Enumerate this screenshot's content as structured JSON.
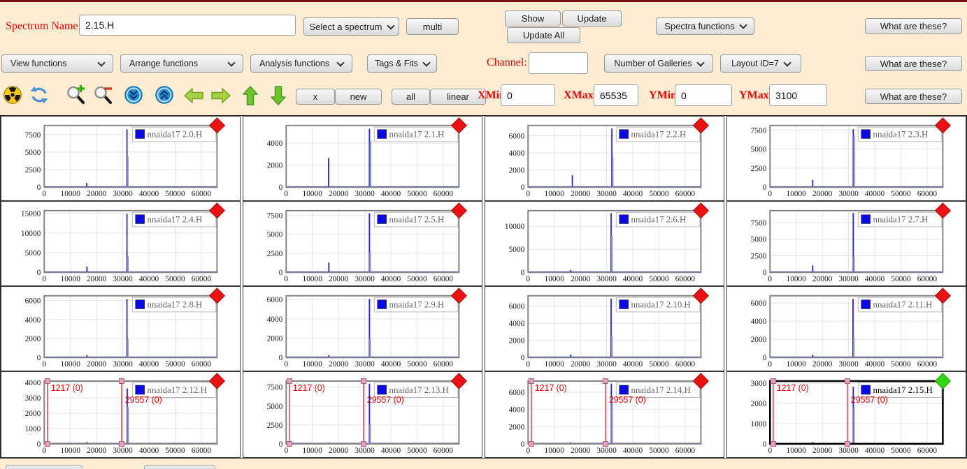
{
  "toolbar_row1": {
    "spectrum_name_label": "Spectrum Name:",
    "spectrum_name_value": "2.15.H",
    "select_spectrum_label": "Select a spectrum",
    "multi_label": "multi",
    "show_label": "Show",
    "update_label": "Update",
    "update_all_label": "Update All",
    "spectra_functions_label": "Spectra functions",
    "what_are_these_label": "What are these?"
  },
  "toolbar_row2": {
    "view_functions_label": "View functions",
    "arrange_functions_label": "Arrange functions",
    "analysis_functions_label": "Analysis functions",
    "tags_fits_label": "Tags & Fits",
    "channel_label": "Channel:",
    "channel_value": "",
    "number_of_galleries_label": "Number of Galleries",
    "layout_id_label": "Layout ID=7",
    "what_are_these_label": "What are these?"
  },
  "toolbar_row3": {
    "x_label": "x",
    "new_label": "new",
    "all_label": "all",
    "linear_label": "linear",
    "xmin_label": "XMin",
    "xmin_value": "0",
    "xmax_label": "XMax",
    "xmax_value": "65535",
    "ymin_label": "YMin",
    "ymin_value": "0",
    "ymax_label": "YMax",
    "ymax_value": "3100",
    "what_are_these_label": "What are these?",
    "icons": [
      "radiation-icon",
      "refresh-icon",
      "zoom-in-icon",
      "zoom-out-icon",
      "scroll-down-icon",
      "scroll-up-icon",
      "left-arrow-icon",
      "right-arrow-icon",
      "up-arrow-icon",
      "down-arrow-icon"
    ]
  },
  "chart_data": {
    "type": "line",
    "note": "4x4 gallery of 1-D spectra histograms, blue spikes near channel 16200 and 31700",
    "x_axis": {
      "ticks": [
        0,
        10000,
        20000,
        30000,
        40000,
        50000,
        60000
      ],
      "range": [
        0,
        66000
      ]
    },
    "colors": {
      "spike": "#2222d8",
      "spike_soft": "#8585e0",
      "grid": "#e4e4ea",
      "plot_border": "#858585",
      "selected_border": "#000000",
      "diamond_red": "#ee1111",
      "diamond_green": "#2fd611",
      "marker": "#d83030",
      "marker_handle_fill": "#d9a6c6",
      "marker_handle_stroke": "#c05a78",
      "legend_swatch": "#0a0ae6",
      "legend_text": "#666666",
      "legend_text_selected": "#000000"
    },
    "charts": [
      {
        "label": "nnaida17 2.0.H",
        "yticks": [
          0,
          2500,
          5000,
          7500
        ],
        "ymax": 8800,
        "peaks": [
          [
            16200,
            620,
            0
          ],
          [
            31600,
            8250,
            0
          ],
          [
            31900,
            4400,
            1
          ]
        ],
        "diamond": "red",
        "selected": false,
        "markers": []
      },
      {
        "label": "nnaida17 2.1.H",
        "yticks": [
          0,
          2000,
          4000
        ],
        "ymax": 5600,
        "peaks": [
          [
            16200,
            2650,
            0
          ],
          [
            31800,
            5300,
            0
          ],
          [
            32150,
            4200,
            1
          ]
        ],
        "diamond": "red",
        "selected": false,
        "markers": []
      },
      {
        "label": "nnaida17 2.2.H",
        "yticks": [
          0,
          2000,
          4000,
          6000
        ],
        "ymax": 7200,
        "peaks": [
          [
            16900,
            1400,
            0
          ],
          [
            32000,
            6850,
            0
          ],
          [
            32300,
            3500,
            1
          ]
        ],
        "diamond": "red",
        "selected": false,
        "markers": []
      },
      {
        "label": "nnaida17 2.3.H",
        "yticks": [
          0,
          2500,
          5000,
          7500
        ],
        "ymax": 8100,
        "peaks": [
          [
            16300,
            950,
            0
          ],
          [
            31800,
            7600,
            0
          ],
          [
            32100,
            6800,
            1
          ]
        ],
        "diamond": "red",
        "selected": false,
        "markers": []
      },
      {
        "label": "nnaida17 2.4.H",
        "yticks": [
          0,
          5000,
          10000,
          15000
        ],
        "ymax": 15700,
        "peaks": [
          [
            16300,
            1450,
            0
          ],
          [
            31600,
            14900,
            0
          ],
          [
            31950,
            4100,
            1
          ]
        ],
        "diamond": "red",
        "selected": false,
        "markers": []
      },
      {
        "label": "nnaida17 2.5.H",
        "yticks": [
          0,
          2500,
          5000,
          7500
        ],
        "ymax": 8100,
        "peaks": [
          [
            16300,
            1300,
            0
          ],
          [
            31800,
            7750,
            0
          ],
          [
            32050,
            2600,
            1
          ]
        ],
        "diamond": "red",
        "selected": false,
        "markers": []
      },
      {
        "label": "nnaida17 2.6.H",
        "yticks": [
          0,
          5000,
          10000
        ],
        "ymax": 13400,
        "peaks": [
          [
            16300,
            520,
            0
          ],
          [
            31700,
            12850,
            0
          ],
          [
            32000,
            8000,
            1
          ]
        ],
        "diamond": "red",
        "selected": false,
        "markers": []
      },
      {
        "label": "nnaida17 2.7.H",
        "yticks": [
          0,
          2500,
          5000,
          7500
        ],
        "ymax": 9300,
        "peaks": [
          [
            16300,
            1050,
            0
          ],
          [
            31800,
            8950,
            0
          ],
          [
            32050,
            2400,
            1
          ]
        ],
        "diamond": "red",
        "selected": false,
        "markers": []
      },
      {
        "label": "nnaida17 2.8.H",
        "yticks": [
          0,
          2000,
          4000,
          6000
        ],
        "ymax": 6500,
        "peaks": [
          [
            16300,
            260,
            0
          ],
          [
            31600,
            6150,
            0
          ],
          [
            31900,
            2000,
            1
          ]
        ],
        "diamond": "red",
        "selected": false,
        "markers": []
      },
      {
        "label": "nnaida17 2.9.H",
        "yticks": [
          0,
          2000,
          4000,
          6000
        ],
        "ymax": 6400,
        "peaks": [
          [
            16300,
            260,
            0
          ],
          [
            31800,
            6050,
            0
          ],
          [
            32050,
            2000,
            1
          ]
        ],
        "diamond": "red",
        "selected": false,
        "markers": []
      },
      {
        "label": "nnaida17 2.10.H",
        "yticks": [
          0,
          2000,
          4000,
          6000
        ],
        "ymax": 7200,
        "peaks": [
          [
            16300,
            360,
            0
          ],
          [
            31700,
            6850,
            0
          ],
          [
            32000,
            2500,
            1
          ]
        ],
        "diamond": "red",
        "selected": false,
        "markers": []
      },
      {
        "label": "nnaida17 2.11.H",
        "yticks": [
          0,
          2000,
          4000,
          6000
        ],
        "ymax": 6800,
        "peaks": [
          [
            16300,
            300,
            0
          ],
          [
            31700,
            6450,
            0
          ],
          [
            32000,
            2200,
            1
          ]
        ],
        "diamond": "red",
        "selected": false,
        "markers": []
      },
      {
        "label": "nnaida17 2.12.H",
        "yticks": [
          0,
          1000,
          2000,
          3000,
          4000
        ],
        "ymax": 4100,
        "peaks": [
          [
            16300,
            120,
            0
          ],
          [
            31700,
            3620,
            0
          ],
          [
            32000,
            2400,
            1
          ]
        ],
        "diamond": "red",
        "selected": false,
        "markers": [
          {
            "x": 1217,
            "label": "1217 (0)",
            "label_y": 27
          },
          {
            "x": 29557,
            "label": "29557 (0)",
            "label_y": 44
          }
        ]
      },
      {
        "label": "nnaida17 2.13.H",
        "yticks": [
          0,
          2500,
          5000,
          7500
        ],
        "ymax": 8300,
        "peaks": [
          [
            16300,
            160,
            0
          ],
          [
            31800,
            7950,
            0
          ],
          [
            32050,
            2600,
            1
          ]
        ],
        "diamond": "red",
        "selected": false,
        "markers": [
          {
            "x": 1217,
            "label": "1217 (0)",
            "label_y": 27
          },
          {
            "x": 29557,
            "label": "29557 (0)",
            "label_y": 44
          }
        ]
      },
      {
        "label": "nnaida17 2.14.H",
        "yticks": [
          0,
          2000,
          4000,
          6000
        ],
        "ymax": 7300,
        "peaks": [
          [
            16300,
            160,
            0
          ],
          [
            31800,
            7000,
            0
          ],
          [
            32050,
            5500,
            1
          ]
        ],
        "diamond": "red",
        "selected": false,
        "markers": [
          {
            "x": 1217,
            "label": "1217 (0)",
            "label_y": 27
          },
          {
            "x": 29557,
            "label": "29557 (0)",
            "label_y": 44
          }
        ]
      },
      {
        "label": "nnaida17 2.15.H",
        "yticks": [
          0,
          1000,
          2000,
          3000
        ],
        "ymax": 3100,
        "peaks": [
          [
            16300,
            90,
            0
          ],
          [
            31800,
            2820,
            0
          ],
          [
            32050,
            1800,
            1
          ]
        ],
        "diamond": "green",
        "selected": true,
        "markers": [
          {
            "x": 1217,
            "label": "1217 (0)",
            "label_y": 27
          },
          {
            "x": 29557,
            "label": "29557 (0)",
            "label_y": 44
          }
        ]
      }
    ]
  }
}
